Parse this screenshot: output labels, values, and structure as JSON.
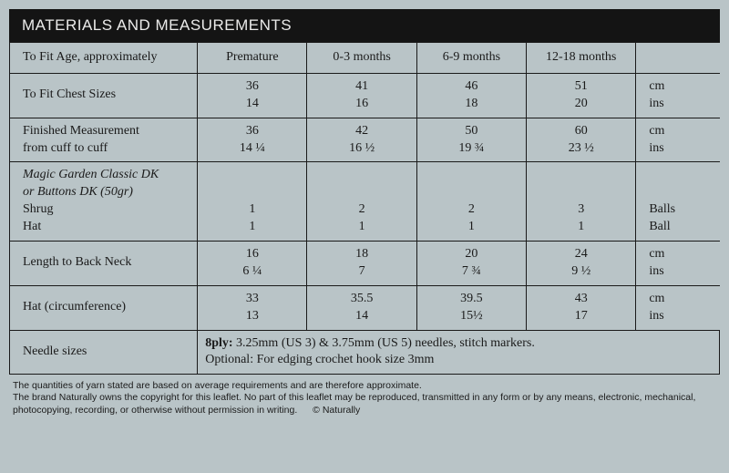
{
  "title": "MATERIALS AND MEASUREMENTS",
  "headers": {
    "row_label": "To Fit Age, approximately",
    "sizes": [
      "Premature",
      "0-3 months",
      "6-9 months",
      "12-18 months"
    ]
  },
  "rows": {
    "chest": {
      "label": "To Fit Chest Sizes",
      "line1": [
        "36",
        "41",
        "46",
        "51"
      ],
      "line2": [
        "14",
        "16",
        "18",
        "20"
      ],
      "units": [
        "cm",
        "ins"
      ]
    },
    "finished": {
      "label_line1": "Finished Measurement",
      "label_line2": "from cuff to cuff",
      "line1": [
        "36",
        "42",
        "50",
        "60"
      ],
      "line2": [
        "14 ¼",
        "16 ½",
        "19 ¾",
        "23 ½"
      ],
      "units": [
        "cm",
        "ins"
      ]
    },
    "yarn": {
      "italic_line1": "Magic Garden Classic DK",
      "italic_line2": "or Buttons DK (50gr)",
      "shrug_label": "Shrug",
      "shrug": [
        "1",
        "2",
        "2",
        "3"
      ],
      "hat_label": "Hat",
      "hat": [
        "1",
        "1",
        "1",
        "1"
      ],
      "units": [
        "Balls",
        "Ball"
      ]
    },
    "length_neck": {
      "label": "Length to Back Neck",
      "line1": [
        "16",
        "18",
        "20",
        "24"
      ],
      "line2": [
        "6 ¼",
        "7",
        "7 ¾",
        "9 ½"
      ],
      "units": [
        "cm",
        "ins"
      ]
    },
    "hat_circ": {
      "label": "Hat (circumference)",
      "line1": [
        "33",
        "35.5",
        "39.5",
        "43"
      ],
      "line2": [
        "13",
        "14",
        "15½",
        "17"
      ],
      "units": [
        "cm",
        "ins"
      ]
    },
    "needles": {
      "label": "Needle sizes",
      "ply_prefix": "8ply:",
      "text_line1": " 3.25mm (US 3) & 3.75mm (US 5) needles, stitch markers.",
      "text_line2": "Optional: For edging crochet hook size 3mm"
    }
  },
  "footer": {
    "line1": "The quantities of yarn stated are based on average requirements and are therefore approximate.",
    "line2": "The brand Naturally owns the copyright for this leaflet. No part of this leaflet may be reproduced, transmitted in any form or by any means, electronic, mechanical, photocopying, recording, or otherwise without permission in writing.",
    "copyright": "© Naturally"
  },
  "style": {
    "page_bg": "#b9c4c7",
    "title_bg": "#141414",
    "title_fg": "#ebebea",
    "border": "#1a1a1a"
  }
}
